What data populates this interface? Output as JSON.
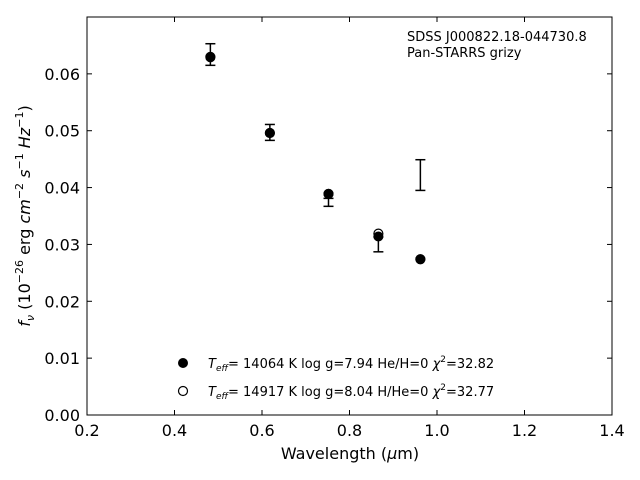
{
  "chart_data": {
    "type": "scatter",
    "xlabel": "Wavelength (μm)",
    "ylabel": "f_ν (10^-26 erg cm^-2 s^-1 Hz^-1)",
    "xlim": [
      0.2,
      1.4
    ],
    "ylim": [
      0.0,
      0.07
    ],
    "x_ticks": [
      "0.2",
      "0.4",
      "0.6",
      "0.8",
      "1.0",
      "1.2",
      "1.4"
    ],
    "y_ticks": [
      "0.00",
      "0.01",
      "0.02",
      "0.03",
      "0.04",
      "0.05",
      "0.06"
    ],
    "annotation": [
      "SDSS J000822.18-044730.8",
      "Pan-STARRS grizy"
    ],
    "observed": {
      "x": [
        0.482,
        0.618,
        0.752,
        0.866,
        0.962
      ],
      "y": [
        0.0634,
        0.0497,
        0.0374,
        0.03,
        0.0422
      ],
      "err": [
        0.0019,
        0.0014,
        0.0007,
        0.0013,
        0.0027
      ]
    },
    "series": [
      {
        "marker": "filled",
        "legend": {
          "teff_label": "T",
          "teff_sub": "eff",
          "text": "= 14064 K  log g=7.94  He/H=0  ",
          "chi": "χ",
          "chi_sup": "2",
          "chi_val": "=32.82"
        },
        "x": [
          0.482,
          0.618,
          0.752,
          0.866,
          0.962
        ],
        "y": [
          0.0629,
          0.0496,
          0.0389,
          0.0314,
          0.0274
        ]
      },
      {
        "marker": "open",
        "legend": {
          "teff_label": "T",
          "teff_sub": "eff",
          "text": "= 14917 K  log g=8.04  H/He=0  ",
          "chi": "χ",
          "chi_sup": "2",
          "chi_val": "=32.77"
        },
        "x": [
          0.482,
          0.618,
          0.752,
          0.866,
          0.962
        ],
        "y": [
          0.063,
          0.0496,
          0.0389,
          0.0319,
          0.0274
        ]
      }
    ]
  }
}
